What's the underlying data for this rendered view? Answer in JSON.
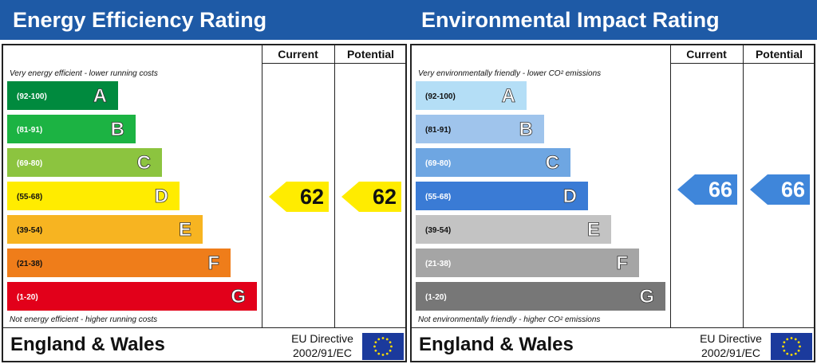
{
  "chart_data": [
    {
      "type": "bar",
      "title": "Energy Efficiency Rating",
      "columns": [
        "Current",
        "Potential"
      ],
      "top_note": "Very energy efficient - lower running costs",
      "bottom_note": "Not energy efficient - higher running costs",
      "bands": [
        {
          "letter": "A",
          "range": "(92-100)",
          "color": "#008a3e",
          "text_color": "#ffffff"
        },
        {
          "letter": "B",
          "range": "(81-91)",
          "color": "#1cb343",
          "text_color": "#ffffff"
        },
        {
          "letter": "C",
          "range": "(69-80)",
          "color": "#8cc43f",
          "text_color": "#ffffff"
        },
        {
          "letter": "D",
          "range": "(55-68)",
          "color": "#ffec00",
          "text_color": "#111111"
        },
        {
          "letter": "E",
          "range": "(39-54)",
          "color": "#f7b421",
          "text_color": "#111111"
        },
        {
          "letter": "F",
          "range": "(21-38)",
          "color": "#ef7d1a",
          "text_color": "#111111"
        },
        {
          "letter": "G",
          "range": "(1-20)",
          "color": "#e2001a",
          "text_color": "#ffffff"
        }
      ],
      "current": {
        "value": "62",
        "band": "D",
        "color": "#ffec00",
        "text_color": "#111111"
      },
      "potential": {
        "value": "62",
        "band": "D",
        "color": "#ffec00",
        "text_color": "#111111"
      },
      "footer": {
        "country": "England & Wales",
        "directive_line1": "EU Directive",
        "directive_line2": "2002/91/EC"
      }
    },
    {
      "type": "bar",
      "title": "Environmental Impact Rating",
      "columns": [
        "Current",
        "Potential"
      ],
      "top_note": "Very environmentally friendly - lower CO² emissions",
      "bottom_note": "Not environmentally friendly - higher CO² emissions",
      "bands": [
        {
          "letter": "A",
          "range": "(92-100)",
          "color": "#b4def6",
          "text_color": "#111111"
        },
        {
          "letter": "B",
          "range": "(81-91)",
          "color": "#9fc4ec",
          "text_color": "#111111"
        },
        {
          "letter": "C",
          "range": "(69-80)",
          "color": "#6ea6e2",
          "text_color": "#ffffff"
        },
        {
          "letter": "D",
          "range": "(55-68)",
          "color": "#3a7bd5",
          "text_color": "#ffffff"
        },
        {
          "letter": "E",
          "range": "(39-54)",
          "color": "#c3c3c3",
          "text_color": "#111111"
        },
        {
          "letter": "F",
          "range": "(21-38)",
          "color": "#a5a5a5",
          "text_color": "#ffffff"
        },
        {
          "letter": "G",
          "range": "(1-20)",
          "color": "#777777",
          "text_color": "#ffffff"
        }
      ],
      "current": {
        "value": "66",
        "band": "D",
        "color": "#3f86da",
        "text_color": "#ffffff"
      },
      "potential": {
        "value": "66",
        "band": "D",
        "color": "#3f86da",
        "text_color": "#ffffff"
      },
      "footer": {
        "country": "England & Wales",
        "directive_line1": "EU Directive",
        "directive_line2": "2002/91/EC"
      }
    }
  ]
}
